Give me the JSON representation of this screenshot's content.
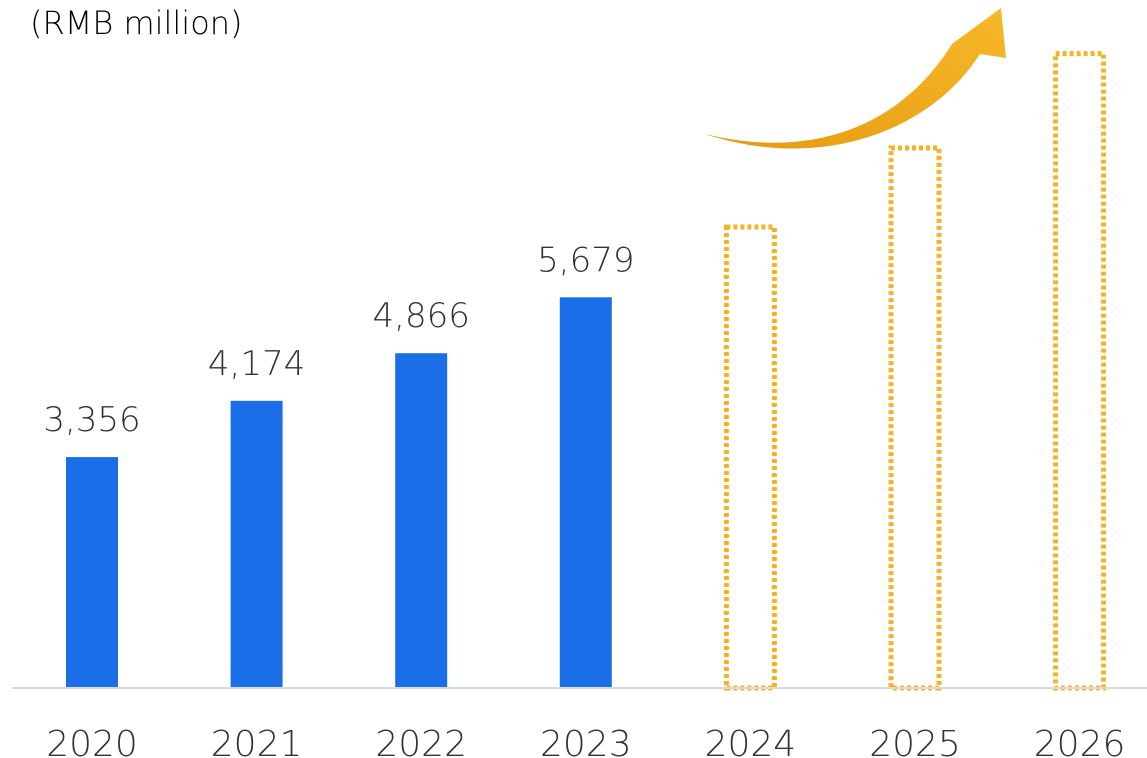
{
  "chart_data": {
    "type": "bar",
    "unit_label": "(RMB million)",
    "categories": [
      "2020",
      "2021",
      "2022",
      "2023",
      "2024",
      "2025",
      "2026"
    ],
    "series": [
      {
        "kind": "actual",
        "values": [
          3356,
          4174,
          4866,
          5679,
          null,
          null,
          null
        ],
        "labels": [
          "3,356",
          "4,174",
          "4,866",
          "5,679",
          "",
          "",
          ""
        ]
      },
      {
        "kind": "projected",
        "style": "dotted-outline",
        "values": [
          null,
          null,
          null,
          null,
          6700,
          7850,
          9220
        ]
      }
    ],
    "ylim": [
      0,
      10000
    ],
    "grid": false,
    "legend": "none",
    "trend_arrow": "upward",
    "colors": {
      "actual": "#1a6ee8",
      "projected": "#f3b323",
      "arrow": "#f4b322",
      "unit_label": "#2d6ee0",
      "text": "#333333",
      "axis": "#d9d9d9"
    }
  }
}
